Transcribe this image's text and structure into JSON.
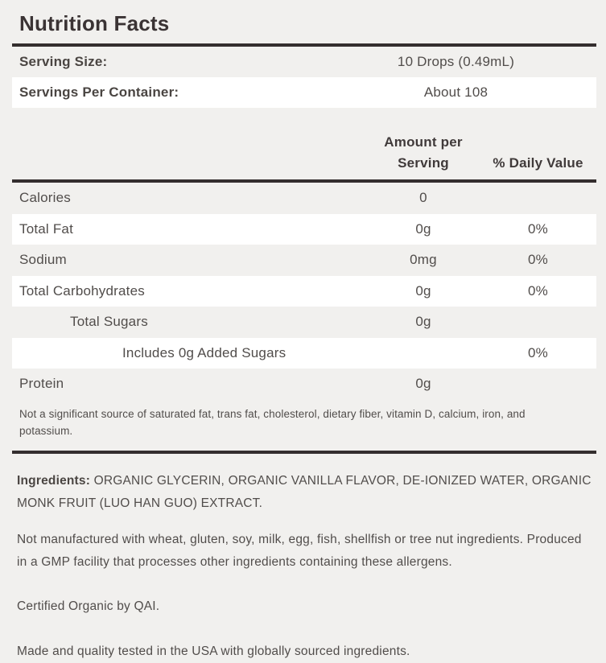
{
  "title": "Nutrition Facts",
  "serving_info": [
    {
      "label": "Serving Size:",
      "value": "10 Drops (0.49mL)"
    },
    {
      "label": "Servings Per Container:",
      "value": "About 108"
    }
  ],
  "table": {
    "headers": {
      "amount_line1": "Amount per",
      "amount_line2": "Serving",
      "daily": "% Daily Value"
    },
    "rows": [
      {
        "label": "Calories",
        "amount": "0",
        "daily": "",
        "indent": 0
      },
      {
        "label": "Total Fat",
        "amount": "0g",
        "daily": "0%",
        "indent": 0
      },
      {
        "label": "Sodium",
        "amount": "0mg",
        "daily": "0%",
        "indent": 0
      },
      {
        "label": "Total Carbohydrates",
        "amount": "0g",
        "daily": "0%",
        "indent": 0
      },
      {
        "label": "Total Sugars",
        "amount": "0g",
        "daily": "",
        "indent": 1
      },
      {
        "label": "Includes 0g Added Sugars",
        "amount": "",
        "daily": "0%",
        "indent": 2
      },
      {
        "label": "Protein",
        "amount": "0g",
        "daily": "",
        "indent": 0
      }
    ],
    "footnote": "Not a significant source of saturated fat, trans fat, cholesterol, dietary fiber, vitamin D, calcium, iron, and potassium."
  },
  "details": {
    "ingredients_label": "Ingredients:",
    "ingredients_text": " ORGANIC GLYCERIN, ORGANIC VANILLA FLAVOR, DE-IONIZED WATER, ORGANIC MONK FRUIT (LUO HAN GUO) EXTRACT.",
    "allergen_text": "Not manufactured with wheat, gluten, soy, milk, egg, fish, shellfish or tree nut ingredients. Produced in a GMP facility that processes other ingredients containing these allergens.",
    "certification_text": "Certified Organic by QAI.",
    "origin_text": "Made and quality tested in the USA with globally sourced ingredients."
  },
  "colors": {
    "background": "#f1f0ee",
    "stripe": "#ffffff",
    "rule": "#342e2e",
    "title_text": "#3a3334",
    "body_text": "#514d4b"
  }
}
